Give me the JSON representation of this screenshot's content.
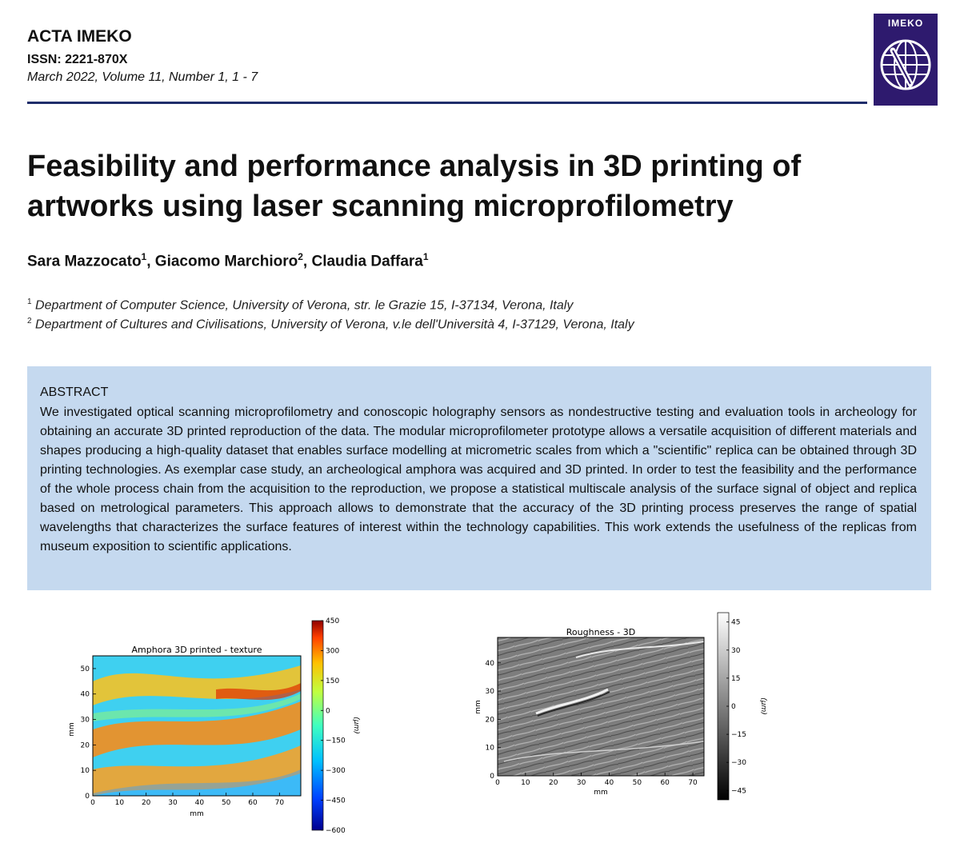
{
  "header": {
    "journal": "ACTA IMEKO",
    "issn": "ISSN: 2221-870X",
    "issue": "March 2022, Volume 11, Number 1, 1 - 7",
    "logo_text": "IMEKO"
  },
  "paper": {
    "title_line1": "Feasibility and performance analysis in 3D printing of",
    "title_line2": "artworks using laser scanning microprofilometry",
    "authors": [
      {
        "name": "Sara Mazzocato",
        "sup": "1"
      },
      {
        "name": "Giacomo Marchioro",
        "sup": "2"
      },
      {
        "name": "Claudia Daffara",
        "sup": "1"
      }
    ],
    "affiliations": [
      {
        "sup": "1",
        "text": "Department of Computer Science, University of Verona, str. le Grazie 15, I-37134, Verona, Italy"
      },
      {
        "sup": "2",
        "text": "Department of Cultures and Civilisations, University of Verona, v.le dell'Università 4, I-37129, Verona, Italy"
      }
    ]
  },
  "abstract": {
    "heading": "ABSTRACT",
    "text": "We investigated optical scanning microprofilometry and conoscopic holography sensors as nondestructive testing and evaluation tools in archeology for obtaining an accurate 3D printed reproduction of the data. The modular microprofilometer prototype allows a versatile acquisition of different materials and shapes producing a high-quality dataset that enables surface modelling at micrometric scales from which a \"scientific\" replica can be obtained through 3D printing technologies. As exemplar case study, an archeological amphora was acquired and 3D printed. In order to test the feasibility and the performance of the whole process chain from the acquisition to the reproduction, we propose a statistical multiscale analysis of the surface signal of object and replica based on metrological parameters. This approach allows to demonstrate that the accuracy of the 3D printing process preserves the range of spatial wavelengths that characterizes the surface features of interest within the technology capabilities. This work extends the usefulness of the replicas from museum exposition to scientific applications."
  },
  "chart_data": [
    {
      "type": "heatmap",
      "title": "Amphora 3D printed - texture",
      "xlabel": "mm",
      "ylabel": "mm",
      "xticks": [
        "0",
        "10",
        "20",
        "30",
        "40",
        "50",
        "60",
        "70"
      ],
      "yticks": [
        "0",
        "10",
        "20",
        "30",
        "40",
        "50"
      ],
      "xlim": [
        0,
        78
      ],
      "ylim": [
        0,
        55
      ],
      "colorbar": {
        "label": "(μm)",
        "ticks": [
          "450",
          "300",
          "150",
          "0",
          "−150",
          "−300",
          "−450",
          "−600"
        ],
        "range": [
          -600,
          450
        ],
        "colors": [
          "#00008f",
          "#0040ff",
          "#00c0ff",
          "#40ffc0",
          "#c0ff40",
          "#ffc000",
          "#ff4000",
          "#8f0000"
        ]
      }
    },
    {
      "type": "heatmap",
      "title": "Roughness - 3D",
      "xlabel": "mm",
      "ylabel": "mm",
      "xticks": [
        "0",
        "10",
        "20",
        "30",
        "40",
        "50",
        "60",
        "70"
      ],
      "yticks": [
        "0",
        "10",
        "20",
        "30",
        "40"
      ],
      "xlim": [
        0,
        74
      ],
      "ylim": [
        0,
        49
      ],
      "colorbar": {
        "label": "(μm)",
        "ticks": [
          "45",
          "30",
          "15",
          "0",
          "−15",
          "−30",
          "−45"
        ],
        "range": [
          -50,
          50
        ],
        "colors": [
          "#000000",
          "#ffffff"
        ]
      }
    }
  ]
}
